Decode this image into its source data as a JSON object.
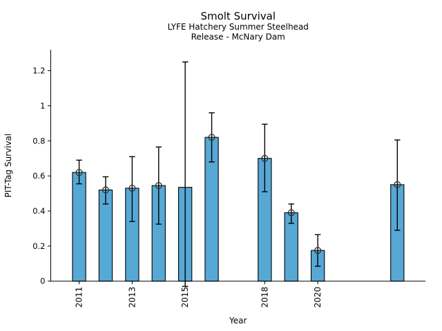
{
  "chart_data": {
    "type": "bar",
    "title": "Smolt Survival",
    "subtitle_line1": "LYFE Hatchery Summer Steelhead",
    "subtitle_line2": "Release - McNary Dam",
    "xlabel": "Year",
    "ylabel": "PIT-Tag Survival",
    "x": [
      2011,
      2012,
      2013,
      2014,
      2015,
      2016,
      2018,
      2019,
      2020,
      2023
    ],
    "values": [
      0.62,
      0.52,
      0.53,
      0.545,
      0.535,
      0.82,
      0.7,
      0.39,
      0.175,
      0.55
    ],
    "error_low": [
      0.555,
      0.44,
      0.34,
      0.325,
      -0.03,
      0.68,
      0.51,
      0.33,
      0.085,
      0.29
    ],
    "error_high": [
      0.69,
      0.595,
      0.71,
      0.765,
      1.25,
      0.96,
      0.895,
      0.44,
      0.265,
      0.805
    ],
    "marker_shown": [
      true,
      true,
      true,
      true,
      false,
      true,
      true,
      true,
      true,
      true
    ],
    "x_ticks": [
      2011,
      2013,
      2015,
      2018,
      2020
    ],
    "x_tick_labels": [
      "2011",
      "2013",
      "2015",
      "2018",
      "2020"
    ],
    "y_ticks": [
      0,
      0.2,
      0.4,
      0.6,
      0.8,
      1.0,
      1.2
    ],
    "y_tick_labels": [
      "0",
      "0.2",
      "0.4",
      "0.6",
      "0.8",
      "1",
      "1.2"
    ],
    "xlim": [
      2009.93,
      2024.06
    ],
    "ylim": [
      0,
      1.319
    ],
    "bar_width_years": 0.5,
    "grid": false,
    "legend": "none",
    "colors": {
      "bar_fill": "#56a8d5",
      "bar_edge": "#000000",
      "error_bar": "#000000",
      "marker_edge": "#303030",
      "axis": "#000000",
      "text": "#000000",
      "background": "#ffffff"
    }
  }
}
